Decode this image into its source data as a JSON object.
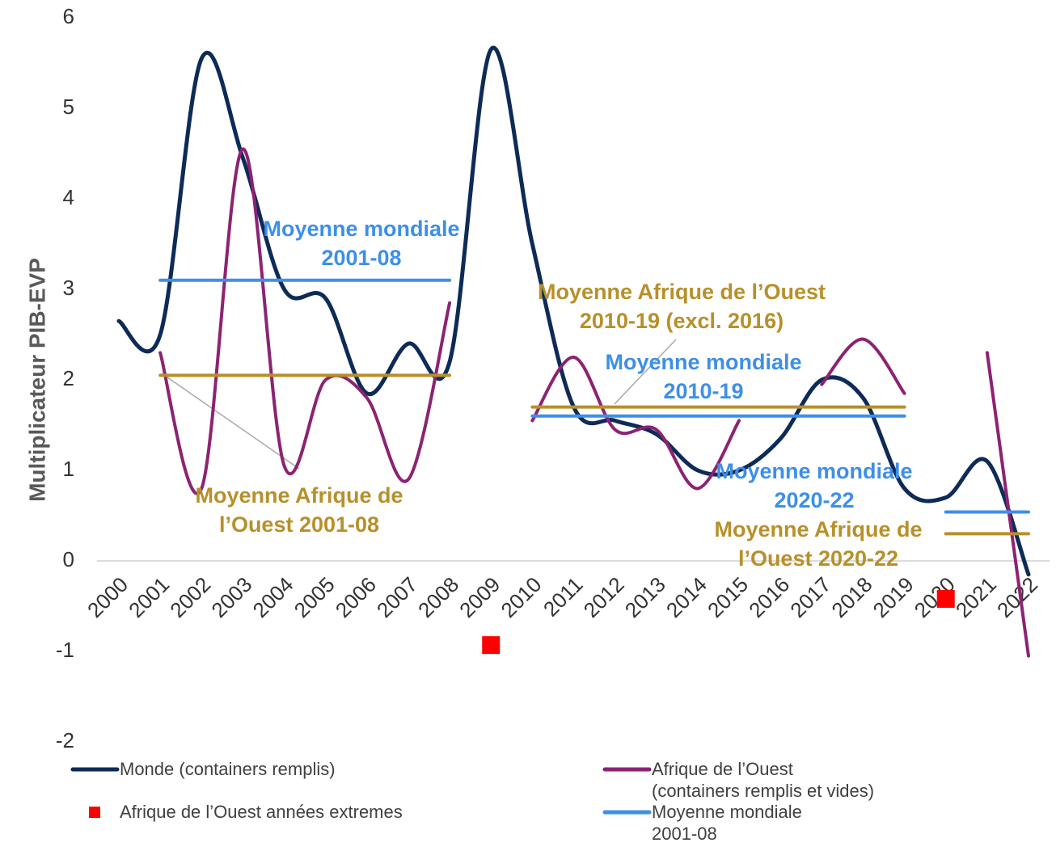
{
  "chart_data": {
    "type": "line",
    "y_label": "Multiplicateur PIB-EVP",
    "categories": [
      "2000",
      "2001",
      "2002",
      "2003",
      "2004",
      "2005",
      "2006",
      "2007",
      "2008",
      "2009",
      "2010",
      "2011",
      "2012",
      "2013",
      "2014",
      "2015",
      "2016",
      "2017",
      "2018",
      "2019",
      "2020",
      "2021",
      "2022"
    ],
    "ylim": [
      -2,
      6
    ],
    "yticks": [
      -2,
      -1,
      0,
      1,
      2,
      3,
      4,
      5,
      6
    ],
    "smooth": true,
    "series": [
      {
        "name": "Monde (containers remplis)",
        "color": "#0d2b58",
        "width": 5,
        "values": [
          2.65,
          2.5,
          5.55,
          4.45,
          3.0,
          2.9,
          1.85,
          2.4,
          2.2,
          5.65,
          3.5,
          1.7,
          1.55,
          1.4,
          1.0,
          1.0,
          1.35,
          2.0,
          1.8,
          0.8,
          0.7,
          1.1,
          -0.15
        ]
      },
      {
        "name": "Afrique de l’Ouest\n(containers remplis et vides)",
        "color": "#8c2372",
        "width": 4,
        "values": [
          null,
          2.3,
          0.8,
          4.55,
          1.05,
          2.0,
          1.8,
          0.9,
          2.85,
          null,
          1.55,
          2.25,
          1.45,
          1.45,
          0.8,
          1.55,
          null,
          1.95,
          2.45,
          1.85,
          null,
          2.3,
          -1.05
        ]
      },
      {
        "name": "Afrique de l’Ouest années extremes",
        "type": "scatter",
        "color": "#ff0000",
        "values": [
          null,
          null,
          null,
          null,
          null,
          null,
          null,
          null,
          null,
          -0.93,
          null,
          null,
          null,
          null,
          null,
          null,
          null,
          null,
          null,
          null,
          -0.42,
          null,
          null
        ]
      },
      {
        "name": "Moyenne mondiale\n2001-08",
        "color": "#3d8fe8",
        "width": 4,
        "smooth": false,
        "values": [
          null,
          3.1,
          3.1,
          3.1,
          3.1,
          3.1,
          3.1,
          3.1,
          3.1,
          null,
          null,
          null,
          null,
          null,
          null,
          null,
          null,
          null,
          null,
          null,
          null,
          null,
          null
        ]
      },
      {
        "color": "#3d8fe8",
        "width": 4,
        "smooth": false,
        "values": [
          null,
          null,
          null,
          null,
          null,
          null,
          null,
          null,
          null,
          null,
          1.6,
          1.6,
          1.6,
          1.6,
          1.6,
          1.6,
          1.6,
          1.6,
          1.6,
          1.6,
          null,
          null,
          null
        ]
      },
      {
        "color": "#3d8fe8",
        "width": 4,
        "smooth": false,
        "values": [
          null,
          null,
          null,
          null,
          null,
          null,
          null,
          null,
          null,
          null,
          null,
          null,
          null,
          null,
          null,
          null,
          null,
          null,
          null,
          null,
          0.54,
          0.54,
          0.54
        ]
      },
      {
        "color": "#b8902a",
        "width": 4,
        "smooth": false,
        "values": [
          null,
          2.05,
          2.05,
          2.05,
          2.05,
          2.05,
          2.05,
          2.05,
          2.05,
          null,
          null,
          null,
          null,
          null,
          null,
          null,
          null,
          null,
          null,
          null,
          null,
          null,
          null
        ]
      },
      {
        "color": "#b8902a",
        "width": 4,
        "smooth": false,
        "values": [
          null,
          null,
          null,
          null,
          null,
          null,
          null,
          null,
          null,
          null,
          1.7,
          1.7,
          1.7,
          1.7,
          1.7,
          1.7,
          1.7,
          1.7,
          1.7,
          1.7,
          null,
          null,
          null
        ]
      },
      {
        "color": "#b8902a",
        "width": 4,
        "smooth": false,
        "values": [
          null,
          null,
          null,
          null,
          null,
          null,
          null,
          null,
          null,
          null,
          null,
          null,
          null,
          null,
          null,
          null,
          null,
          null,
          null,
          null,
          0.3,
          0.3,
          0.3
        ]
      }
    ],
    "annotations": [
      {
        "text": "Moyenne mondiale\n2001-08",
        "color": "#3d8fe8"
      },
      {
        "text": "Moyenne Afrique de\nl’Ouest 2001-08",
        "color": "#b8902a"
      },
      {
        "text": "Moyenne Afrique de l’Ouest\n2010-19 (excl. 2016)",
        "color": "#b8902a"
      },
      {
        "text": "Moyenne mondiale\n2010-19",
        "color": "#3d8fe8"
      },
      {
        "text": "Moyenne mondiale\n2020-22",
        "color": "#3d8fe8"
      },
      {
        "text": "Moyenne Afrique de\nl’Ouest 2020-22",
        "color": "#b8902a"
      }
    ]
  }
}
